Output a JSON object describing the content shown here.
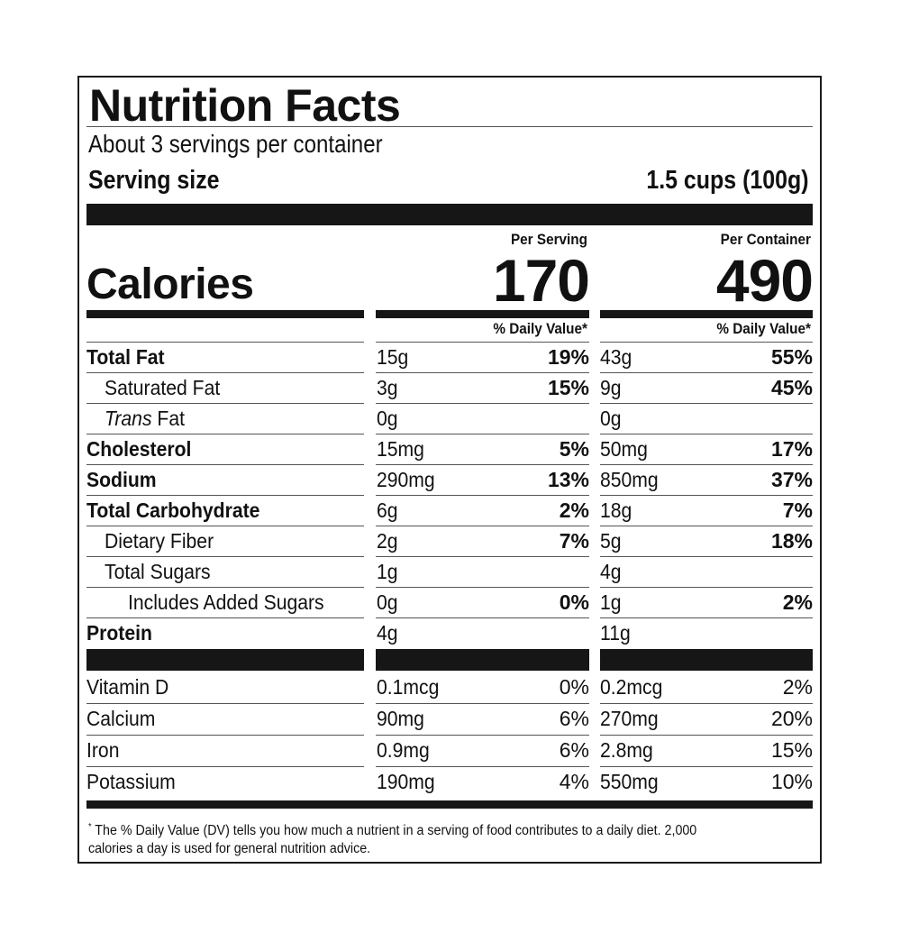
{
  "title": "Nutrition Facts",
  "servings_per_container": "About 3 servings per container",
  "serving_size_label": "Serving size",
  "serving_size_value": "1.5 cups (100g)",
  "columns": {
    "serving_header": "Per Serving",
    "container_header": "Per Container"
  },
  "calories": {
    "label": "Calories",
    "per_serving": "170",
    "per_container": "490"
  },
  "daily_value_header": "% Daily Value*",
  "nutrients": [
    {
      "name": "Total Fat",
      "bold": true,
      "indent": 0,
      "serving_amount": "15g",
      "serving_dv": "19%",
      "container_amount": "43g",
      "container_dv": "55%"
    },
    {
      "name": "Saturated Fat",
      "bold": false,
      "indent": 1,
      "serving_amount": "3g",
      "serving_dv": "15%",
      "container_amount": "9g",
      "container_dv": "45%"
    },
    {
      "name": "Trans Fat",
      "bold": false,
      "indent": 1,
      "serving_amount": "0g",
      "serving_dv": "",
      "container_amount": "0g",
      "container_dv": ""
    },
    {
      "name": "Cholesterol",
      "bold": true,
      "indent": 0,
      "serving_amount": "15mg",
      "serving_dv": "5%",
      "container_amount": "50mg",
      "container_dv": "17%"
    },
    {
      "name": "Sodium",
      "bold": true,
      "indent": 0,
      "serving_amount": "290mg",
      "serving_dv": "13%",
      "container_amount": "850mg",
      "container_dv": "37%"
    },
    {
      "name": "Total Carbohydrate",
      "bold": true,
      "indent": 0,
      "serving_amount": "6g",
      "serving_dv": "2%",
      "container_amount": "18g",
      "container_dv": "7%"
    },
    {
      "name": "Dietary Fiber",
      "bold": false,
      "indent": 1,
      "serving_amount": "2g",
      "serving_dv": "7%",
      "container_amount": "5g",
      "container_dv": "18%"
    },
    {
      "name": "Total Sugars",
      "bold": false,
      "indent": 1,
      "serving_amount": "1g",
      "serving_dv": "",
      "container_amount": "4g",
      "container_dv": ""
    },
    {
      "name": "Includes Added Sugars",
      "bold": false,
      "indent": 2,
      "serving_amount": "0g",
      "serving_dv": "0%",
      "container_amount": "1g",
      "container_dv": "2%"
    },
    {
      "name": "Protein",
      "bold": true,
      "indent": 0,
      "serving_amount": "4g",
      "serving_dv": "",
      "container_amount": "11g",
      "container_dv": ""
    }
  ],
  "vitamins": [
    {
      "name": "Vitamin D",
      "serving_amount": "0.1mcg",
      "serving_dv": "0%",
      "container_amount": "0.2mcg",
      "container_dv": "2%"
    },
    {
      "name": "Calcium",
      "serving_amount": "90mg",
      "serving_dv": "6%",
      "container_amount": "270mg",
      "container_dv": "20%"
    },
    {
      "name": "Iron",
      "serving_amount": "0.9mg",
      "serving_dv": "6%",
      "container_amount": "2.8mg",
      "container_dv": "15%"
    },
    {
      "name": "Potassium",
      "serving_amount": "190mg",
      "serving_dv": "4%",
      "container_amount": "550mg",
      "container_dv": "10%"
    }
  ],
  "footnote": {
    "marker": "*",
    "text": "The % Daily Value (DV) tells you how much a nutrient in a serving of food contributes to a daily diet. 2,000 calories a day is used for general nutrition advice."
  }
}
